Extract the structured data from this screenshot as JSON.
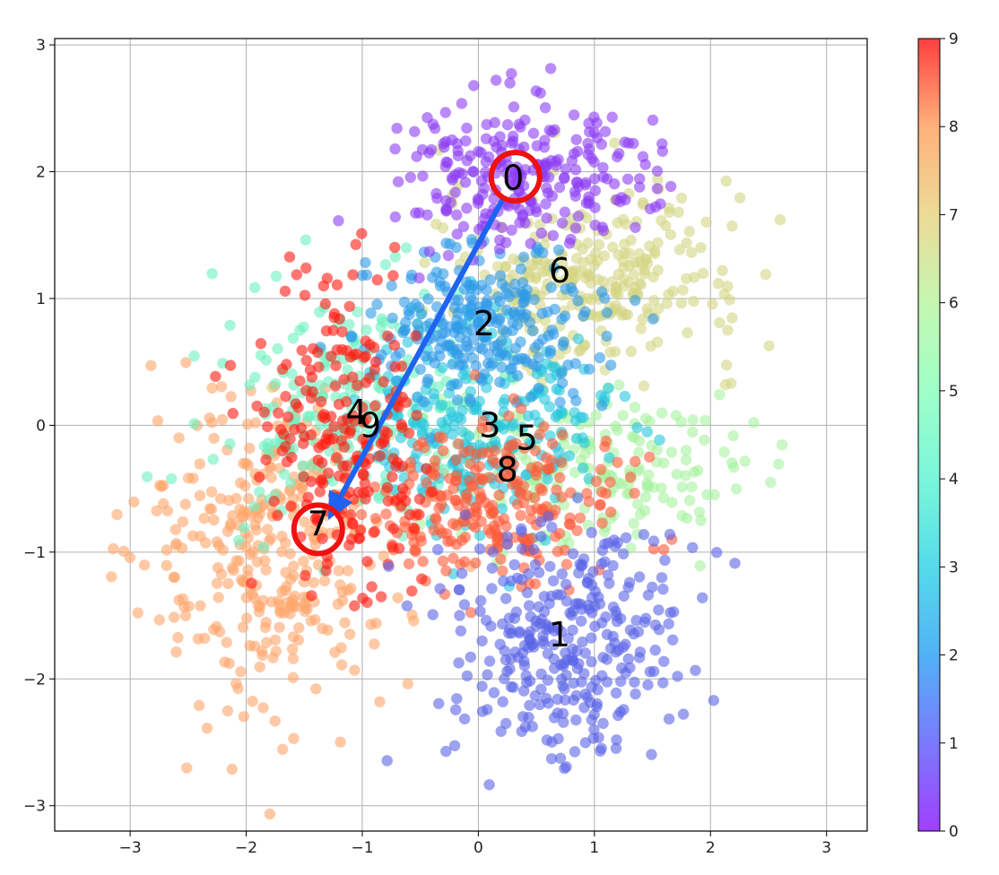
{
  "chart_data": {
    "type": "scatter",
    "title": "",
    "xlabel": "",
    "ylabel": "",
    "xlim": [
      -3.65,
      3.35
    ],
    "ylim": [
      -3.2,
      3.05
    ],
    "xticks": [
      -3,
      -2,
      -1,
      0,
      1,
      2,
      3
    ],
    "yticks": [
      -3,
      -2,
      -1,
      0,
      1,
      2,
      3
    ],
    "xtick_labels": [
      "−3",
      "−2",
      "−1",
      "0",
      "1",
      "2",
      "3"
    ],
    "ytick_labels": [
      "−3",
      "−2",
      "−1",
      "0",
      "1",
      "2",
      "3"
    ],
    "grid": true,
    "colormap": "rainbow",
    "point_alpha": 0.6,
    "colorbar": {
      "range": [
        0,
        9
      ],
      "ticks": [
        0,
        1,
        2,
        3,
        4,
        5,
        6,
        7,
        8,
        9
      ],
      "tick_labels": [
        "0",
        "1",
        "2",
        "3",
        "4",
        "5",
        "6",
        "7",
        "8",
        "9"
      ]
    },
    "clusters": [
      {
        "label": "0",
        "center": [
          0.3,
          1.95
        ],
        "spread": [
          0.55,
          0.3
        ],
        "count": 260,
        "color": "#8c3cf4"
      },
      {
        "label": "1",
        "center": [
          0.7,
          -1.7
        ],
        "spread": [
          0.5,
          0.5
        ],
        "count": 320,
        "color": "#5a64e6"
      },
      {
        "label": "2",
        "center": [
          0.05,
          0.8
        ],
        "spread": [
          0.55,
          0.3
        ],
        "count": 260,
        "color": "#2e9ae8"
      },
      {
        "label": "3",
        "center": [
          0.1,
          0.0
        ],
        "spread": [
          0.5,
          0.4
        ],
        "count": 230,
        "color": "#25c6de"
      },
      {
        "label": "4",
        "center": [
          -1.1,
          0.1
        ],
        "spread": [
          0.6,
          0.45
        ],
        "count": 230,
        "color": "#6ef0c0"
      },
      {
        "label": "5",
        "center": [
          0.9,
          -0.3
        ],
        "spread": [
          0.65,
          0.3
        ],
        "count": 200,
        "color": "#a6f29f"
      },
      {
        "label": "6",
        "center": [
          1.0,
          1.15
        ],
        "spread": [
          0.65,
          0.35
        ],
        "count": 280,
        "color": "#d3d683"
      },
      {
        "label": "7",
        "center": [
          -1.8,
          -1.0
        ],
        "spread": [
          0.55,
          0.65
        ],
        "count": 330,
        "color": "#ffa56b"
      },
      {
        "label": "8",
        "center": [
          0.2,
          -0.6
        ],
        "spread": [
          0.5,
          0.3
        ],
        "count": 260,
        "color": "#ff5a38"
      },
      {
        "label": "9",
        "center": [
          -1.15,
          -0.1
        ],
        "spread": [
          0.35,
          0.6
        ],
        "count": 230,
        "color": "#ff1a10"
      }
    ],
    "cluster_labels": [
      {
        "text": "0",
        "x": 0.3,
        "y": 1.95
      },
      {
        "text": "1",
        "x": 0.7,
        "y": -1.65
      },
      {
        "text": "2",
        "x": 0.05,
        "y": 0.8
      },
      {
        "text": "3",
        "x": 0.1,
        "y": 0.0
      },
      {
        "text": "4",
        "x": -1.05,
        "y": 0.1
      },
      {
        "text": "9",
        "x": -0.93,
        "y": 0.0
      },
      {
        "text": "5",
        "x": 0.42,
        "y": -0.1
      },
      {
        "text": "8",
        "x": 0.25,
        "y": -0.35
      },
      {
        "text": "6",
        "x": 0.7,
        "y": 1.22
      },
      {
        "text": "7",
        "x": -1.38,
        "y": -0.78
      }
    ],
    "annotations": {
      "highlight_circles": [
        {
          "label": "0",
          "x": 0.32,
          "y": 1.96,
          "color": "#ee1111"
        },
        {
          "label": "7",
          "x": -1.38,
          "y": -0.82,
          "color": "#ee1111"
        }
      ],
      "arrow": {
        "from": [
          0.22,
          1.8
        ],
        "to": [
          -1.25,
          -0.67
        ],
        "color": "#1f63f0"
      }
    }
  }
}
